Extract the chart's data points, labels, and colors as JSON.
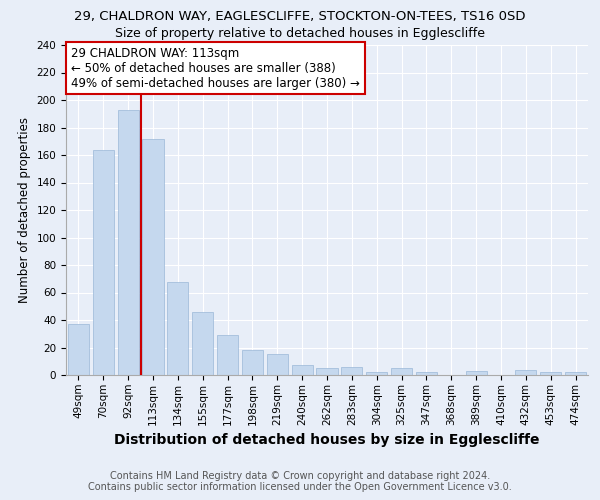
{
  "title": "29, CHALDRON WAY, EAGLESCLIFFE, STOCKTON-ON-TEES, TS16 0SD",
  "subtitle": "Size of property relative to detached houses in Egglescliffe",
  "xlabel": "Distribution of detached houses by size in Egglescliffe",
  "ylabel": "Number of detached properties",
  "footer_line1": "Contains HM Land Registry data © Crown copyright and database right 2024.",
  "footer_line2": "Contains public sector information licensed under the Open Government Licence v3.0.",
  "categories": [
    "49sqm",
    "70sqm",
    "92sqm",
    "113sqm",
    "134sqm",
    "155sqm",
    "177sqm",
    "198sqm",
    "219sqm",
    "240sqm",
    "262sqm",
    "283sqm",
    "304sqm",
    "325sqm",
    "347sqm",
    "368sqm",
    "389sqm",
    "410sqm",
    "432sqm",
    "453sqm",
    "474sqm"
  ],
  "values": [
    37,
    164,
    193,
    172,
    68,
    46,
    29,
    18,
    15,
    7,
    5,
    6,
    2,
    5,
    2,
    0,
    3,
    0,
    4,
    2,
    2
  ],
  "bar_color": "#c5d8ee",
  "bar_edge_color": "#9ab8d8",
  "property_label": "29 CHALDRON WAY: 113sqm",
  "annotation_line2": "← 50% of detached houses are smaller (388)",
  "annotation_line3": "49% of semi-detached houses are larger (380) →",
  "vline_color": "#cc0000",
  "vline_index": 3,
  "ylim": [
    0,
    240
  ],
  "background_color": "#e8eef8",
  "plot_bg_color": "#e8eef8",
  "grid_color": "#ffffff",
  "title_fontsize": 9.5,
  "subtitle_fontsize": 9,
  "xlabel_fontsize": 10,
  "ylabel_fontsize": 8.5,
  "tick_fontsize": 7.5,
  "annotation_fontsize": 8.5,
  "footer_fontsize": 7
}
